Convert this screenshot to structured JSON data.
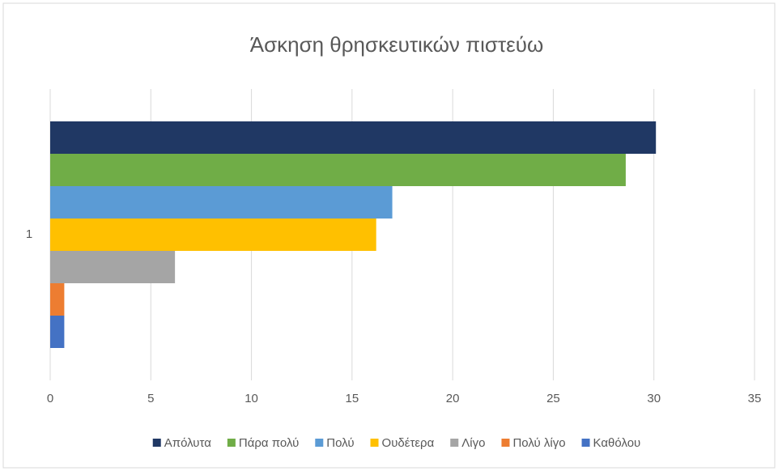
{
  "chart_data": {
    "type": "bar",
    "orientation": "horizontal",
    "title": "Άσκηση θρησκευτικών πιστεύω",
    "categories": [
      "1"
    ],
    "series": [
      {
        "name": "Απόλυτα",
        "color": "#203864",
        "values": [
          30.1
        ]
      },
      {
        "name": "Πάρα πολύ",
        "color": "#70ad47",
        "values": [
          28.6
        ]
      },
      {
        "name": "Πολύ",
        "color": "#5b9bd5",
        "values": [
          17
        ]
      },
      {
        "name": "Ουδέτερα",
        "color": "#ffc000",
        "values": [
          16.2
        ]
      },
      {
        "name": "Λίγο",
        "color": "#a5a5a5",
        "values": [
          6.2
        ]
      },
      {
        "name": "Πολύ λίγο",
        "color": "#ed7d31",
        "values": [
          0.7
        ]
      },
      {
        "name": "Καθόλου",
        "color": "#4472c4",
        "values": [
          0.7
        ]
      }
    ],
    "xlim": [
      0,
      35
    ],
    "xticks": [
      0,
      5,
      10,
      15,
      20,
      25,
      30,
      35
    ],
    "grid": true,
    "legend": "bottom"
  }
}
